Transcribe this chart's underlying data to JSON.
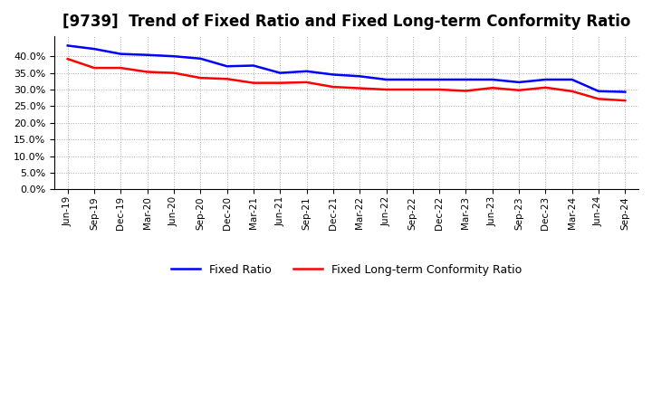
{
  "title": "[9739]  Trend of Fixed Ratio and Fixed Long-term Conformity Ratio",
  "title_fontsize": 12,
  "background_color": "#ffffff",
  "plot_bg_color": "#ffffff",
  "grid_color": "#aaaaaa",
  "x_labels": [
    "Jun-19",
    "Sep-19",
    "Dec-19",
    "Mar-20",
    "Jun-20",
    "Sep-20",
    "Dec-20",
    "Mar-21",
    "Jun-21",
    "Sep-21",
    "Dec-21",
    "Mar-22",
    "Jun-22",
    "Sep-22",
    "Dec-22",
    "Mar-23",
    "Jun-23",
    "Sep-23",
    "Dec-23",
    "Mar-24",
    "Jun-24",
    "Sep-24"
  ],
  "fixed_ratio": [
    0.432,
    0.422,
    0.407,
    0.404,
    0.4,
    0.393,
    0.37,
    0.372,
    0.35,
    0.355,
    0.345,
    0.34,
    0.33,
    0.33,
    0.33,
    0.33,
    0.33,
    0.322,
    0.33,
    0.33,
    0.295,
    0.293
  ],
  "fixed_lt_ratio": [
    0.392,
    0.365,
    0.365,
    0.353,
    0.35,
    0.335,
    0.332,
    0.32,
    0.32,
    0.322,
    0.308,
    0.304,
    0.3,
    0.3,
    0.3,
    0.296,
    0.305,
    0.298,
    0.306,
    0.295,
    0.272,
    0.267
  ],
  "fixed_ratio_color": "#0000ff",
  "fixed_lt_ratio_color": "#ff0000",
  "line_width": 1.8,
  "ylim": [
    0.0,
    0.46
  ],
  "yticks": [
    0.0,
    0.05,
    0.1,
    0.15,
    0.2,
    0.25,
    0.3,
    0.35,
    0.4
  ],
  "legend_fixed": "Fixed Ratio",
  "legend_lt": "Fixed Long-term Conformity Ratio"
}
